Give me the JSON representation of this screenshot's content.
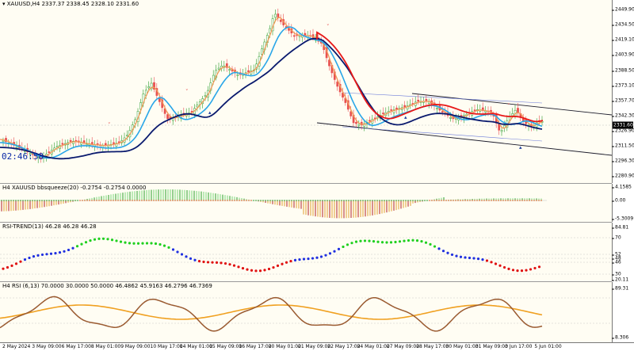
{
  "symbol_info": "XAUUSD,H4  2337.37 2338.45 2328.10 2331.60",
  "current_price": "2331.60",
  "timer": "02:46:58",
  "price_axis": [
    "2449.90",
    "2434.50",
    "2419.10",
    "2403.90",
    "2388.50",
    "2373.10",
    "2357.70",
    "2342.30",
    "2326.90",
    "2311.50",
    "2296.30",
    "2280.90"
  ],
  "indicators": {
    "bbsqueeze": {
      "label": "H4 XAUUSD bbsqueeze(20) -0.2754 -0.2754 0.0000",
      "axis": [
        "4.1585",
        "0.00",
        "-5.3009"
      ]
    },
    "rsi_trend": {
      "label": "RSI-TREND(13) 46.28 46.28 46.28",
      "axis": [
        "84.81",
        "70",
        "52",
        "48",
        "46",
        "30",
        "20.11"
      ]
    },
    "rsi": {
      "label": "H4 RSI  (6,13) 70.0000 30.0000 50.0000 46.4862 45.9163 46.2796 46.7369",
      "axis": [
        "89.31",
        "8.306"
      ]
    }
  },
  "time_axis": [
    "2 May 2024",
    "3 May 09:00",
    "6 May 17:00",
    "8 May 01:00",
    "9 May 09:00",
    "10 May 17:00",
    "14 May 01:00",
    "15 May 09:00",
    "16 May 17:00",
    "20 May 01:00",
    "21 May 09:00",
    "22 May 17:00",
    "24 May 01:00",
    "27 May 09:00",
    "28 May 17:00",
    "30 May 01:00",
    "31 May 09:00",
    "3 Jun 17:00",
    "5 Jun 01:00"
  ],
  "colors": {
    "bull_candle": "#2f9e2f",
    "bear_candle": "#e85050",
    "ma_fast": "#29a6e8",
    "ma_slow": "#0a1a6e",
    "ma_red": "#e81818",
    "ma_orange": "#f09a5a",
    "rsi_main": "#9a5a30",
    "rsi_signal": "#f0a020"
  }
}
